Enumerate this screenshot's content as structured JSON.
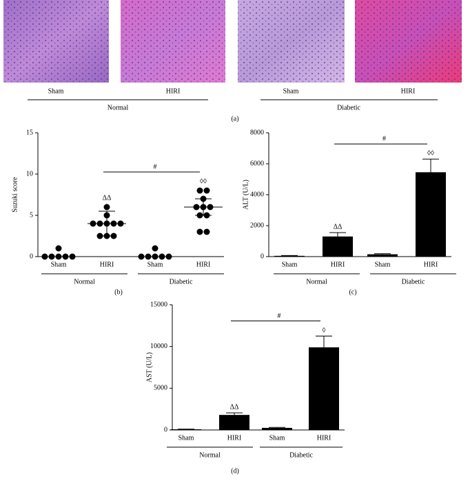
{
  "panel_a": {
    "labels": [
      "Sham",
      "HIRI",
      "Sham",
      "HIRI"
    ],
    "groups": [
      "Normal",
      "Diabetic"
    ],
    "tag": "(a)"
  },
  "chart_data": [
    {
      "type": "scatter",
      "ylabel": "Suzuki score",
      "categories": [
        "Sham",
        "HIRI",
        "Sham",
        "HIRI"
      ],
      "groups": [
        "Normal",
        "Diabetic"
      ],
      "points": [
        [
          0,
          0,
          0,
          0,
          0,
          1
        ],
        [
          6,
          5,
          4,
          4,
          4,
          4,
          4,
          2.5,
          2.5,
          2.5
        ],
        [
          0,
          0,
          0,
          0,
          0,
          1
        ],
        [
          8,
          8,
          7,
          6,
          6,
          6,
          5,
          5,
          3,
          3
        ]
      ],
      "means": [
        0,
        4,
        0,
        6
      ],
      "errors": [
        0,
        1.5,
        0,
        1
      ],
      "annotations": [
        "ΔΔ",
        "◊◊",
        "#"
      ],
      "tag": "(b)",
      "color": "#000000",
      "ylim": [
        0,
        15
      ],
      "yticks": [
        0,
        5,
        10,
        15
      ]
    },
    {
      "type": "bar",
      "ylabel": "ALT (U/L)",
      "categories": [
        "Sham",
        "HIRI",
        "Sham",
        "HIRI"
      ],
      "groups": [
        "Normal",
        "Diabetic"
      ],
      "values": [
        50,
        1300,
        150,
        5450
      ],
      "errors": [
        20,
        250,
        40,
        850
      ],
      "annotations": [
        "ΔΔ",
        "◊◊",
        "#"
      ],
      "tag": "(c)",
      "color": "#000000",
      "ylim": [
        0,
        8000
      ],
      "yticks": [
        0,
        2000,
        4000,
        6000,
        8000
      ]
    },
    {
      "type": "bar",
      "ylabel": "AST (U/L)",
      "categories": [
        "Sham",
        "HIRI",
        "Sham",
        "HIRI"
      ],
      "groups": [
        "Normal",
        "Diabetic"
      ],
      "values": [
        80,
        1800,
        250,
        9900
      ],
      "errors": [
        20,
        250,
        60,
        1350
      ],
      "annotations": [
        "ΔΔ",
        "◊",
        "#"
      ],
      "tag": "(d)",
      "color": "#000000",
      "ylim": [
        0,
        15000
      ],
      "yticks": [
        0,
        5000,
        10000,
        15000
      ]
    }
  ]
}
